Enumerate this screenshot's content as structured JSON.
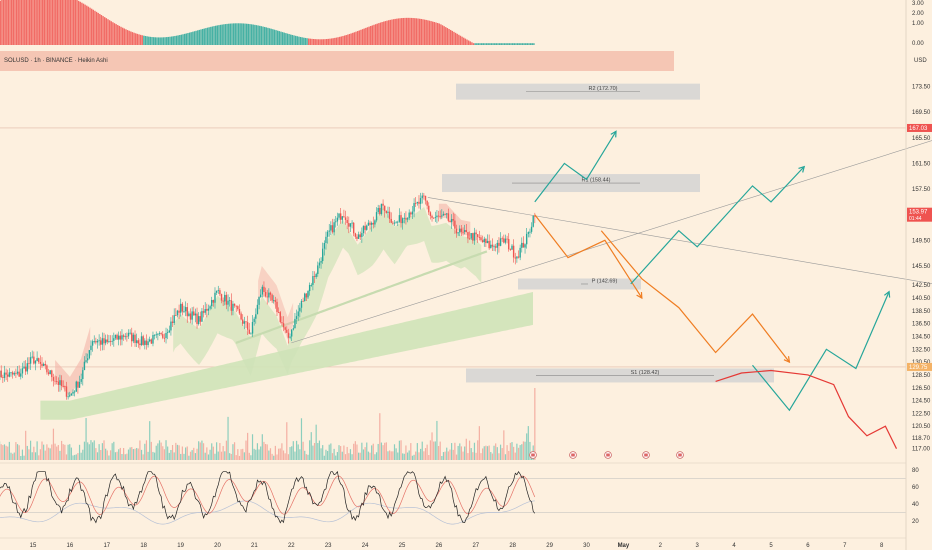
{
  "header": {
    "symbol": "SOLUSD · 1h · BINANCE · Heikin Ashi",
    "currency": "USD"
  },
  "colors": {
    "background": "#fdf0df",
    "bull": "#26a69a",
    "bear": "#ef5350",
    "ema_fill": "#cfe3b8",
    "projection_green": "#26a69a",
    "projection_orange": "#ef7d22",
    "projection_red": "#e53935",
    "zone": "#d3d3d3",
    "price_badge": "#ef5350",
    "level_badge": "#f4b266"
  },
  "chart_data": [
    {
      "type": "candlestick",
      "title": "SOLUSD · 1h · BINANCE · Heikin Ashi",
      "y_axis": {
        "ticks": [
          "173.50",
          "169.50",
          "165.50",
          "161.50",
          "157.50",
          "153.50",
          "149.50",
          "145.50",
          "142.50",
          "140.50",
          "138.50",
          "136.50",
          "134.50",
          "132.50",
          "130.50",
          "128.50",
          "126.50",
          "124.50",
          "122.50",
          "120.50",
          "118.70",
          "117.00"
        ],
        "ylim": [
          115.9,
          176.5
        ]
      },
      "x_axis": {
        "ticks": [
          "15",
          "16",
          "17",
          "18",
          "19",
          "20",
          "21",
          "22",
          "23",
          "24",
          "25",
          "26",
          "27",
          "28",
          "29",
          "30",
          "May",
          "2",
          "3",
          "4",
          "5",
          "6",
          "7",
          "8"
        ]
      },
      "price_badges": [
        {
          "label": "167.03",
          "value": 167.03
        },
        {
          "label": "153.97",
          "sub": "01:44",
          "value": 153.97
        },
        {
          "label": "129.75",
          "value": 129.75
        }
      ],
      "levels": [
        {
          "label": "R2 (172.70)",
          "value": 172.7
        },
        {
          "label": "R1 (158.44)",
          "value": 158.44
        },
        {
          "label": "P (142.69)",
          "value": 142.69
        },
        {
          "label": "S1 (128.42)",
          "value": 128.42
        }
      ],
      "price_path": [
        [
          14.6,
          128.5
        ],
        [
          15.0,
          131.0
        ],
        [
          15.5,
          128.5
        ],
        [
          16.0,
          125.2
        ],
        [
          16.3,
          128.0
        ],
        [
          16.6,
          134.0
        ],
        [
          17.0,
          133.4
        ],
        [
          17.5,
          134.8
        ],
        [
          18.0,
          133.6
        ],
        [
          18.5,
          134.5
        ],
        [
          19.0,
          139.0
        ],
        [
          19.5,
          137.0
        ],
        [
          20.0,
          141.5
        ],
        [
          20.5,
          138.5
        ],
        [
          20.9,
          135.0
        ],
        [
          21.2,
          142.0
        ],
        [
          21.6,
          139.0
        ],
        [
          21.9,
          134.0
        ],
        [
          22.3,
          140.0
        ],
        [
          22.7,
          145.0
        ],
        [
          23.0,
          150.5
        ],
        [
          23.4,
          154.0
        ],
        [
          23.8,
          150.0
        ],
        [
          24.2,
          152.5
        ],
        [
          24.5,
          155.0
        ],
        [
          24.8,
          152.0
        ],
        [
          25.2,
          154.0
        ],
        [
          25.6,
          156.0
        ],
        [
          25.8,
          153.0
        ],
        [
          26.2,
          153.0
        ],
        [
          26.6,
          150.5
        ],
        [
          27.0,
          150.0
        ],
        [
          27.4,
          148.5
        ],
        [
          27.8,
          149.5
        ],
        [
          28.1,
          147.0
        ],
        [
          28.4,
          150.0
        ],
        [
          28.6,
          154.0
        ]
      ],
      "projections": [
        {
          "name": "bull path",
          "points": [
            [
              28.6,
              155.5
            ],
            [
              29.4,
              161.5
            ],
            [
              30.0,
              159.0
            ],
            [
              30.8,
              166.5
            ]
          ]
        },
        {
          "name": "pullback path",
          "points": [
            [
              28.6,
              153.5
            ],
            [
              29.5,
              146.8
            ],
            [
              30.5,
              149.5
            ],
            [
              31.5,
              140.5
            ]
          ]
        },
        {
          "name": "mid bull path",
          "points": [
            [
              31.2,
              142.7
            ],
            [
              32.5,
              151.0
            ],
            [
              33.0,
              148.5
            ],
            [
              34.5,
              158.0
            ],
            [
              35.0,
              155.5
            ],
            [
              35.9,
              161.0
            ]
          ]
        },
        {
          "name": "drop path",
          "points": [
            [
              30.4,
              151.0
            ],
            [
              31.5,
              143.5
            ],
            [
              32.5,
              139.0
            ],
            [
              33.5,
              132.0
            ],
            [
              34.5,
              138.0
            ],
            [
              35.5,
              130.5
            ]
          ]
        },
        {
          "name": "deep path",
          "points": [
            [
              34.5,
              130.0
            ],
            [
              35.5,
              123.0
            ],
            [
              36.5,
              132.5
            ],
            [
              37.3,
              129.5
            ],
            [
              38.2,
              141.5
            ]
          ]
        },
        {
          "name": "crash path",
          "points": [
            [
              33.5,
              127.5
            ],
            [
              34.2,
              128.8
            ],
            [
              35.0,
              129.2
            ],
            [
              36.0,
              128.5
            ],
            [
              36.7,
              127.0
            ],
            [
              37.1,
              122.0
            ],
            [
              37.6,
              119.0
            ],
            [
              38.1,
              120.5
            ],
            [
              38.4,
              117.0
            ]
          ]
        }
      ],
      "trendlines": [
        {
          "from": [
            22.0,
            133.5
          ],
          "to": [
            39.6,
            165.5
          ]
        },
        {
          "from": [
            25.7,
            156.2
          ],
          "to": [
            39.5,
            142.6
          ]
        }
      ]
    },
    {
      "type": "histogram",
      "name": "momentum panel",
      "y_axis": {
        "ticks": [
          "3.00",
          "2.00",
          "1.00",
          "0.00"
        ]
      }
    },
    {
      "type": "line",
      "name": "oscillator",
      "y_axis": {
        "ticks": [
          "80",
          "60",
          "40",
          "20"
        ],
        "ylim": [
          10,
          85
        ]
      },
      "bands": [
        70,
        30
      ]
    }
  ]
}
